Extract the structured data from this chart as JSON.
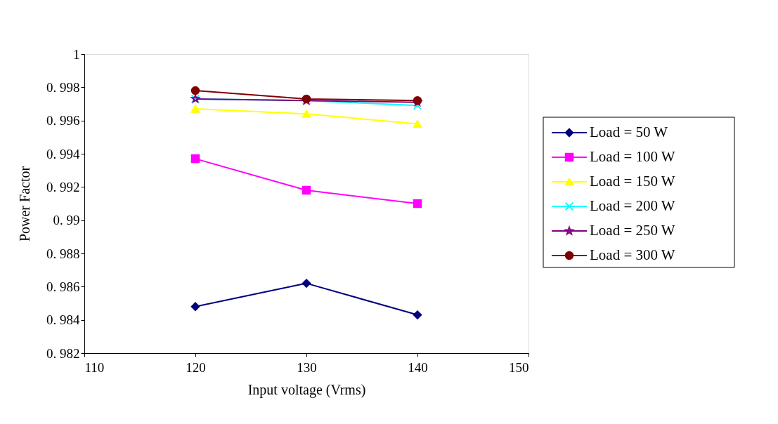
{
  "chart_data": {
    "type": "line",
    "xlabel": "Input voltage (Vrms)",
    "ylabel": "Power Factor",
    "x": [
      120,
      130,
      140
    ],
    "series": [
      {
        "name": "Load = 50 W",
        "color": "#000080",
        "marker": "diamond",
        "values": [
          0.9848,
          0.9862,
          0.9843
        ]
      },
      {
        "name": "Load = 100 W",
        "color": "#ff00ff",
        "marker": "square",
        "values": [
          0.9937,
          0.9918,
          0.991
        ]
      },
      {
        "name": "Load = 150 W",
        "color": "#ffff00",
        "marker": "triangle",
        "values": [
          0.9967,
          0.9964,
          0.9958
        ]
      },
      {
        "name": "Load = 200 W",
        "color": "#00ffff",
        "marker": "cross",
        "values": [
          0.9973,
          0.9972,
          0.9969
        ]
      },
      {
        "name": "Load = 250 W",
        "color": "#800080",
        "marker": "star",
        "values": [
          0.9973,
          0.9972,
          0.9971
        ]
      },
      {
        "name": "Load = 300 W",
        "color": "#800000",
        "marker": "circle",
        "values": [
          0.9978,
          0.9973,
          0.9972
        ]
      }
    ],
    "xlim": [
      110,
      150
    ],
    "xticks": [
      110,
      120,
      130,
      140,
      150
    ],
    "ylim": [
      0.982,
      1
    ],
    "yticks": [
      0.982,
      0.984,
      0.986,
      0.988,
      0.99,
      0.992,
      0.994,
      0.996,
      0.998,
      1
    ],
    "grid": false,
    "legend": "right",
    "line_style": "solid"
  }
}
